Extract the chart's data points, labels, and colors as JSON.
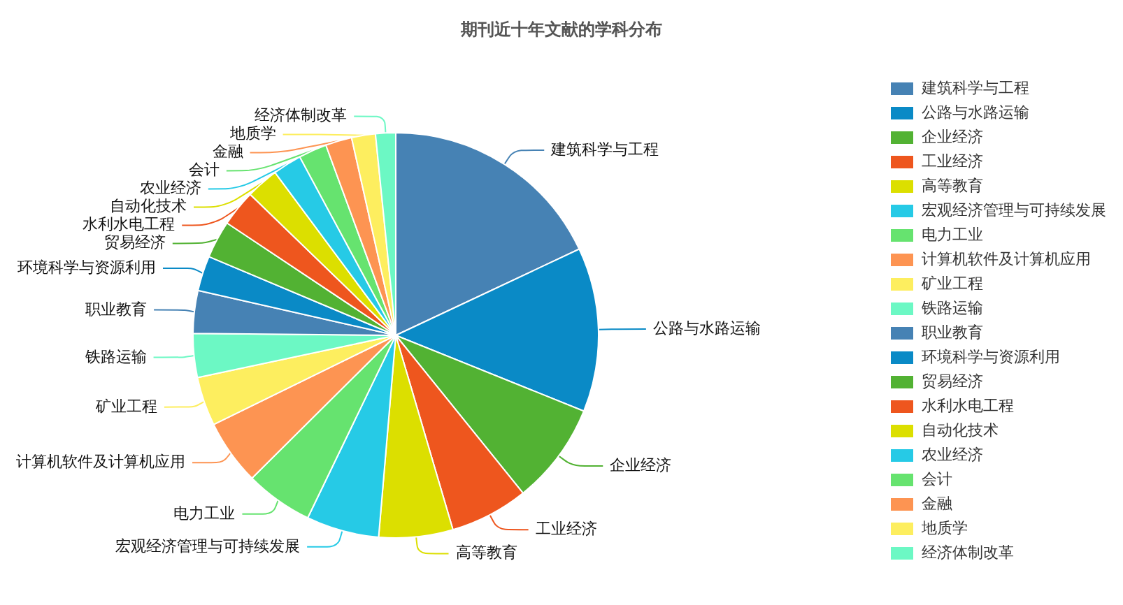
{
  "chart_data": {
    "type": "pie",
    "title": "期刊近十年文献的学科分布",
    "categories": [
      "建筑科学与工程",
      "公路与水路运输",
      "企业经济",
      "工业经济",
      "高等教育",
      "宏观经济管理与可持续发展",
      "电力工业",
      "计算机软件及计算机应用",
      "矿业工程",
      "铁路运输",
      "职业教育",
      "环境科学与资源利用",
      "贸易经济",
      "水利水电工程",
      "自动化技术",
      "农业经济",
      "会计",
      "金融",
      "地质学",
      "经济体制改革"
    ],
    "values": [
      18.0,
      13.1,
      8.1,
      6.25,
      5.9,
      5.8,
      5.4,
      5.2,
      3.9,
      3.5,
      3.4,
      2.8,
      3.0,
      2.9,
      2.6,
      2.3,
      2.25,
      2.1,
      1.9,
      1.6
    ],
    "colors": [
      "#4682b4",
      "#0a8ac6",
      "#52b233",
      "#ee561e",
      "#dcdf00",
      "#26cae6",
      "#66e36f",
      "#fd9452",
      "#fdee5f",
      "#6cf8c4",
      "#4682b4",
      "#0a8ac6",
      "#52b233",
      "#ee561e",
      "#dcdf00",
      "#26cae6",
      "#66e36f",
      "#fd9452",
      "#fdee5f",
      "#6cf8c4"
    ],
    "legend": "right"
  }
}
